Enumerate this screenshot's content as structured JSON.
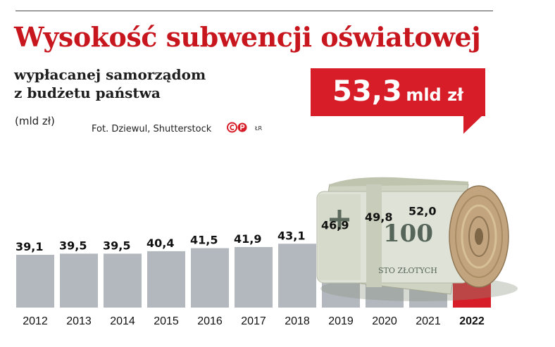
{
  "header": {
    "title": "Wysokość subwencji oświatowej",
    "subtitle_line1": "wypłacanej samorządom",
    "subtitle_line2": "z budżetu państwa",
    "unit_note": "(mld zł)",
    "credit": "Fot. Dziewul, Shutterstock",
    "author_initials": "ŁR"
  },
  "highlight": {
    "value": "53,3",
    "unit": "mld zł"
  },
  "colors": {
    "accent_red": "#d71e28",
    "bar_gray": "#b3b8be",
    "title_red": "#c8161e"
  },
  "icons": {
    "copyright_icon": "copyright-circle-icon",
    "p_icon": "p-circle-icon",
    "photo": "banknote-roll-photo"
  },
  "chart_data": {
    "type": "bar",
    "title": "Wysokość subwencji oświatowej",
    "ylabel": "(mld zł)",
    "categories": [
      "2012",
      "2013",
      "2014",
      "2015",
      "2016",
      "2017",
      "2018",
      "2019",
      "2020",
      "2021",
      "2022"
    ],
    "values": [
      39.1,
      39.5,
      39.5,
      40.4,
      41.5,
      41.9,
      43.1,
      46.9,
      49.8,
      52.0,
      53.3
    ],
    "value_labels": [
      "39,1",
      "39,5",
      "39,5",
      "40,4",
      "41,5",
      "41,9",
      "43,1",
      "46,9",
      "49,8",
      "52,0",
      ""
    ],
    "highlighted_category": "2022",
    "grid": false,
    "legend": "none"
  }
}
